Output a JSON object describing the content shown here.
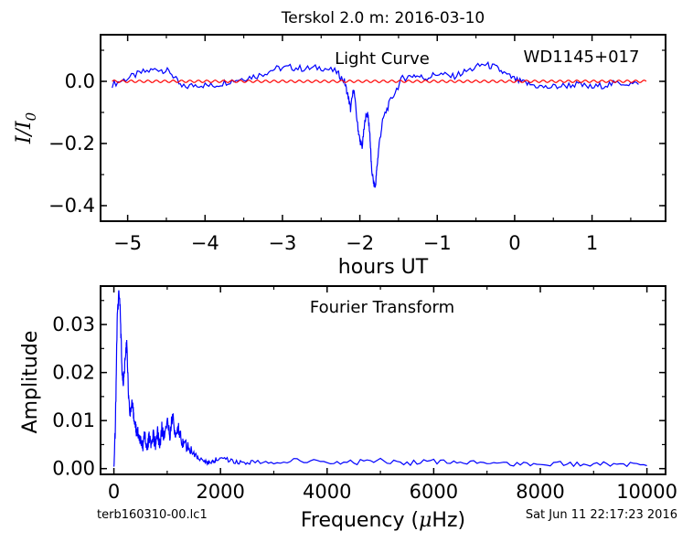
{
  "figure": {
    "title": "Terskol 2.0 m:  2016-03-10",
    "footer_left": "terb160310-00.lc1",
    "footer_right": "Sat Jun 11 22:17:23 2016"
  },
  "colors": {
    "data": "#0000ff",
    "model": "#ff0000",
    "axes": "#000000"
  },
  "chart_data": [
    {
      "type": "line",
      "panel": "top",
      "title": "Light Curve",
      "annotation": "WD1145+017",
      "xlabel": "hours UT",
      "ylabel": "I/I0",
      "xlim": [
        -5.35,
        1.95
      ],
      "ylim": [
        -0.45,
        0.15
      ],
      "xticks": [
        -5,
        -4,
        -3,
        -2,
        -1,
        0,
        1
      ],
      "xtick_labels": [
        "−5",
        "−4",
        "−3",
        "−2",
        "−1",
        "0",
        "1"
      ],
      "yticks": [
        0.0,
        -0.2,
        -0.4
      ],
      "ytick_labels": [
        "0.0",
        "−0.2",
        "−0.4"
      ],
      "grid": false,
      "series": [
        {
          "color": "#0000ff",
          "x": [
            -5.2,
            -5.0,
            -4.8,
            -4.6,
            -4.45,
            -4.3,
            -4.1,
            -3.9,
            -3.7,
            -3.5,
            -3.3,
            -3.1,
            -2.9,
            -2.7,
            -2.5,
            -2.3,
            -2.2,
            -2.15,
            -2.12,
            -2.08,
            -2.03,
            -2.0,
            -1.97,
            -1.93,
            -1.9,
            -1.87,
            -1.85,
            -1.82,
            -1.8,
            -1.78,
            -1.75,
            -1.7,
            -1.6,
            -1.45,
            -1.3,
            -1.15,
            -1.0,
            -0.8,
            -0.6,
            -0.4,
            -0.25,
            -0.1,
            0.05,
            0.2,
            0.4,
            0.6,
            0.8,
            1.0,
            1.2,
            1.4,
            1.6
          ],
          "y": [
            -0.01,
            0.01,
            0.03,
            0.04,
            0.03,
            -0.02,
            -0.01,
            -0.015,
            0.0,
            0.01,
            0.02,
            0.04,
            0.045,
            0.04,
            0.045,
            0.03,
            0.0,
            -0.05,
            -0.09,
            -0.02,
            -0.14,
            -0.19,
            -0.21,
            -0.12,
            -0.1,
            -0.17,
            -0.28,
            -0.33,
            -0.34,
            -0.28,
            -0.2,
            -0.12,
            -0.06,
            0.01,
            0.02,
            0.01,
            0.025,
            0.015,
            0.035,
            0.055,
            0.045,
            0.02,
            0.0,
            -0.01,
            -0.02,
            -0.015,
            -0.01,
            -0.02,
            -0.01,
            -0.005,
            -0.01
          ]
        },
        {
          "color": "#ff0000",
          "x": [
            -5.2,
            1.7
          ],
          "y": [
            0.0,
            0.0
          ],
          "oscillation_amplitude": 0.004
        }
      ]
    },
    {
      "type": "line",
      "panel": "bottom",
      "title": "Fourier Transform",
      "xlabel": "Frequency (μHz)",
      "ylabel": "Amplitude",
      "xlim": [
        -250,
        10350
      ],
      "ylim": [
        -0.0012,
        0.038
      ],
      "xticks": [
        0,
        2000,
        4000,
        6000,
        8000,
        10000
      ],
      "xtick_labels": [
        "0",
        "2000",
        "4000",
        "6000",
        "8000",
        "10000"
      ],
      "yticks": [
        0.0,
        0.01,
        0.02,
        0.03
      ],
      "ytick_labels": [
        "0.00",
        "0.01",
        "0.02",
        "0.03"
      ],
      "grid": false,
      "series": [
        {
          "color": "#0000ff",
          "x": [
            0,
            30,
            60,
            90,
            120,
            150,
            180,
            210,
            240,
            270,
            300,
            330,
            360,
            390,
            420,
            460,
            500,
            540,
            580,
            620,
            660,
            700,
            740,
            780,
            820,
            860,
            900,
            950,
            1000,
            1050,
            1100,
            1150,
            1200,
            1250,
            1300,
            1400,
            1500,
            1600,
            1700,
            1800,
            1900,
            2000,
            2200,
            2400,
            2600,
            3000,
            3500,
            4000,
            4500,
            5000,
            5500,
            6000,
            6500,
            7000,
            7500,
            8000,
            8500,
            9000,
            9500,
            10000
          ],
          "y": [
            0.0,
            0.01,
            0.03,
            0.037,
            0.033,
            0.021,
            0.018,
            0.023,
            0.026,
            0.017,
            0.011,
            0.014,
            0.012,
            0.009,
            0.008,
            0.0075,
            0.0055,
            0.0045,
            0.007,
            0.0045,
            0.0065,
            0.005,
            0.007,
            0.0045,
            0.0075,
            0.005,
            0.0085,
            0.006,
            0.0105,
            0.007,
            0.011,
            0.0075,
            0.0085,
            0.007,
            0.005,
            0.0045,
            0.003,
            0.002,
            0.0015,
            0.0012,
            0.0018,
            0.0022,
            0.0015,
            0.0012,
            0.0015,
            0.0012,
            0.0018,
            0.0012,
            0.0013,
            0.0016,
            0.0012,
            0.0014,
            0.0011,
            0.0012,
            0.0011,
            0.0009,
            0.001,
            0.0009,
            0.0009,
            0.0006
          ]
        }
      ]
    }
  ]
}
